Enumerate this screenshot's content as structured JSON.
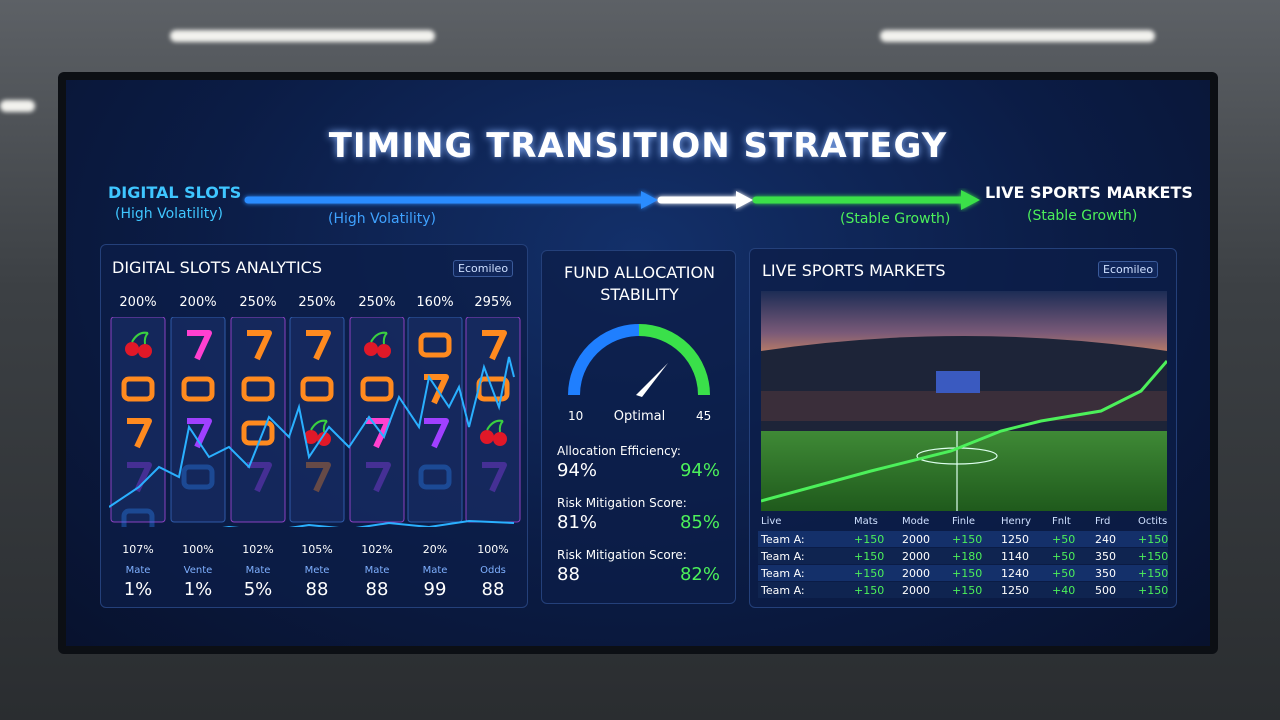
{
  "title": "TIMING TRANSITION STRATEGY",
  "transition": {
    "from_title": "DIGITAL SLOTS",
    "from_subtitle": "(High Volatility)",
    "mid_left": "(High Volatility)",
    "mid_right": "(Stable Growth)",
    "to_title": "LIVE SPORTS MARKETS",
    "to_subtitle": "(Stable Growth)"
  },
  "slots": {
    "title": "DIGITAL SLOTS ANALYTICS",
    "badge": "Ecomileo",
    "top_values": [
      "200%",
      "200%",
      "250%",
      "250%",
      "250%",
      "160%",
      "295%"
    ],
    "bottom_values": [
      "107%",
      "100%",
      "102%",
      "105%",
      "102%",
      "20%",
      "100%"
    ],
    "stat_labels": [
      "Mate",
      "Vente",
      "Mate",
      "Mete",
      "Mate",
      "Mate",
      "Odds"
    ],
    "stat_values": [
      "1%",
      "1%",
      "5%",
      "88",
      "88",
      "99",
      "88"
    ]
  },
  "fund": {
    "title_line1": "FUND ALLOCATION",
    "title_line2": "STABILITY",
    "gauge_min": "10",
    "gauge_label": "Optimal",
    "gauge_max": "45",
    "metrics": [
      {
        "label": "Allocation Efficiency:",
        "left": "94%",
        "right": "94%"
      },
      {
        "label": "Risk Mitigation Score:",
        "left": "81%",
        "right": "85%"
      },
      {
        "label": "Risk Mitigation Score:",
        "left": "88",
        "right": "82%"
      }
    ]
  },
  "sports": {
    "title": "LIVE SPORTS MARKETS",
    "badge": "Ecomileo",
    "table": {
      "header": [
        "Live",
        "Mats",
        "Mode",
        "Finle",
        "Henry",
        "Fnlt",
        "Frd",
        "Octits"
      ],
      "rows": [
        [
          "Team A:",
          "+150",
          "2000",
          "+150",
          "1250",
          "+50",
          "240",
          "+150"
        ],
        [
          "Team A:",
          "+150",
          "2000",
          "+180",
          "1140",
          "+50",
          "350",
          "+150"
        ],
        [
          "Team A:",
          "+150",
          "2000",
          "+150",
          "1240",
          "+50",
          "350",
          "+150"
        ],
        [
          "Team A:",
          "+150",
          "2000",
          "+150",
          "1250",
          "+40",
          "500",
          "+150"
        ]
      ]
    }
  }
}
